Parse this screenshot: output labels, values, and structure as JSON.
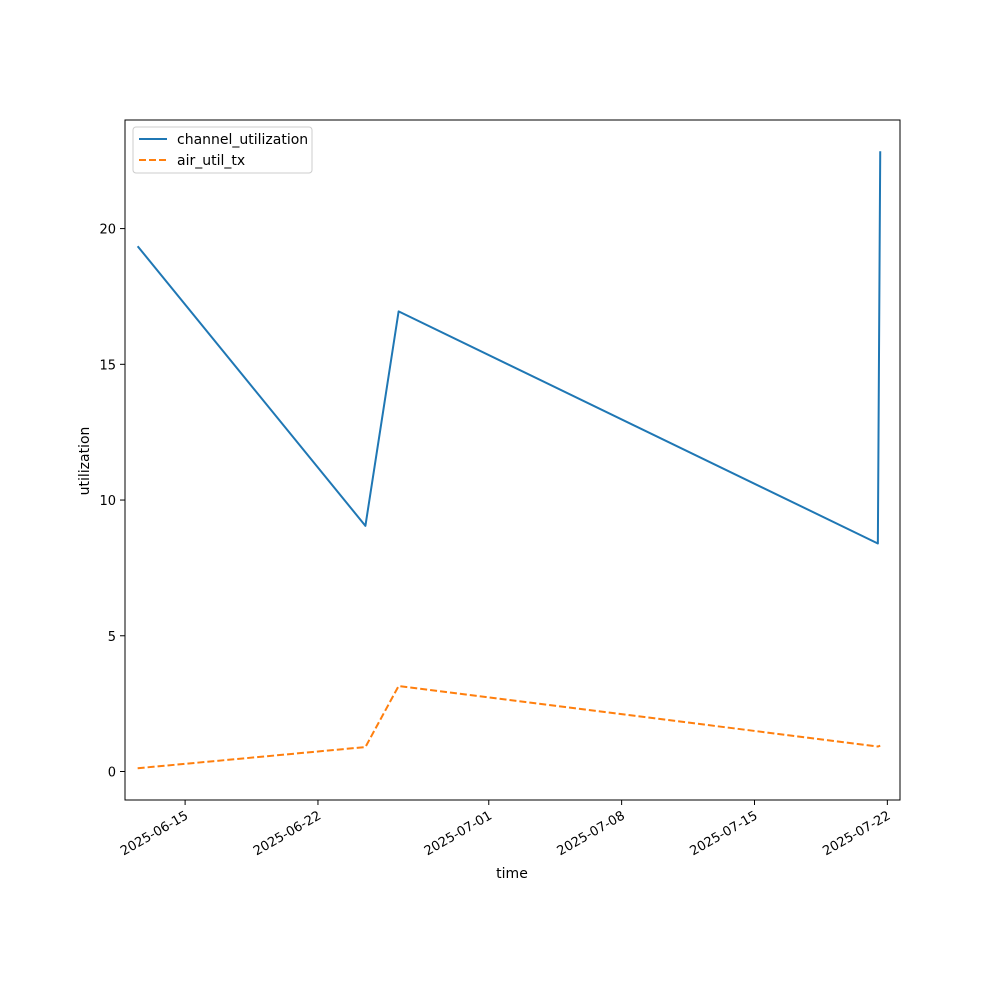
{
  "chart_data": {
    "type": "line",
    "xlabel": "time",
    "ylabel": "utilization",
    "x_type": "date",
    "xlim": [
      "2025-06-11T20:00",
      "2025-07-22T16:00"
    ],
    "ylim": [
      -1.05,
      24.0
    ],
    "x_ticks": [
      "2025-06-15",
      "2025-06-22",
      "2025-07-01",
      "2025-07-08",
      "2025-07-15",
      "2025-07-22"
    ],
    "y_ticks": [
      0,
      5,
      10,
      15,
      20
    ],
    "grid": false,
    "legend_position": "upper-left",
    "series": [
      {
        "name": "channel_utilization",
        "color": "#1f77b4",
        "style": "solid",
        "points": [
          {
            "x": "2025-06-12T12:00",
            "y": 19.35
          },
          {
            "x": "2025-06-24T12:00",
            "y": 9.05
          },
          {
            "x": "2025-06-26T06:00",
            "y": 16.95
          },
          {
            "x": "2025-07-21T12:00",
            "y": 8.4
          },
          {
            "x": "2025-07-21T15:00",
            "y": 22.85
          }
        ]
      },
      {
        "name": "air_util_tx",
        "color": "#ff7f0e",
        "style": "dashed",
        "points": [
          {
            "x": "2025-06-12T12:00",
            "y": 0.12
          },
          {
            "x": "2025-06-24T12:00",
            "y": 0.9
          },
          {
            "x": "2025-06-26T06:00",
            "y": 3.15
          },
          {
            "x": "2025-07-21T12:00",
            "y": 0.92
          },
          {
            "x": "2025-07-21T15:00",
            "y": 0.95
          }
        ]
      }
    ]
  }
}
